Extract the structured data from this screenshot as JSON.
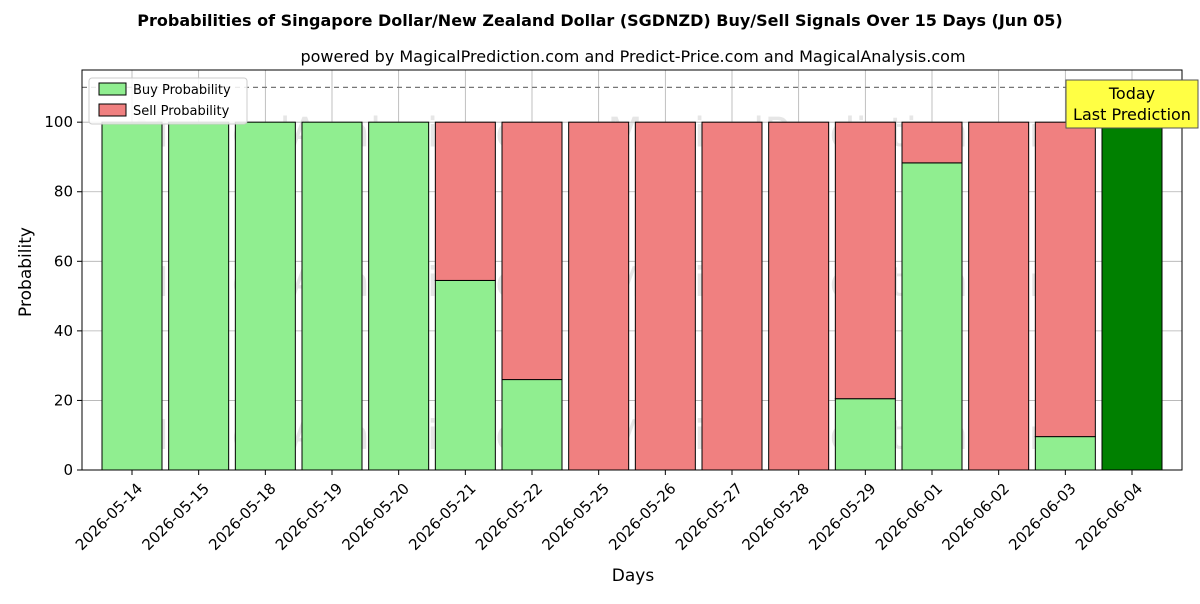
{
  "chart_data": {
    "type": "bar",
    "stacked": true,
    "title": "Probabilities of Singapore Dollar/New Zealand Dollar (SGDNZD) Buy/Sell Signals Over 15 Days (Jun 05)",
    "subtitle": "powered by MagicalPrediction.com and Predict-Price.com and MagicalAnalysis.com",
    "xlabel": "Days",
    "ylabel": "Probability",
    "ylim": [
      0,
      115
    ],
    "yticks": [
      0,
      20,
      40,
      60,
      80,
      100
    ],
    "grid": true,
    "legend_position": "top-left",
    "reference_line": 110,
    "categories": [
      "2026-05-14",
      "2026-05-15",
      "2026-05-18",
      "2026-05-19",
      "2026-05-20",
      "2026-05-21",
      "2026-05-22",
      "2026-05-25",
      "2026-05-26",
      "2026-05-27",
      "2026-05-28",
      "2026-05-29",
      "2026-06-01",
      "2026-06-02",
      "2026-06-03",
      "2026-06-04"
    ],
    "series": [
      {
        "name": "Buy Probability",
        "color": "#90ee90",
        "values": [
          100,
          100,
          100,
          100,
          100,
          54.5,
          26,
          0,
          0,
          0,
          0,
          20.5,
          88.3,
          0,
          9.6,
          100
        ]
      },
      {
        "name": "Sell Probability",
        "color": "#f08080",
        "values": [
          0,
          0,
          0,
          0,
          0,
          45.5,
          74,
          100,
          100,
          100,
          100,
          79.5,
          11.7,
          100,
          90.4,
          0
        ]
      }
    ],
    "highlight": {
      "index": 15,
      "color": "#008000",
      "label_lines": [
        "Today",
        "Last Prediction"
      ],
      "box_color": "#ffff44"
    },
    "watermarks": [
      "MagicalAnalysis.com",
      "MagicalPrediction.com"
    ]
  }
}
